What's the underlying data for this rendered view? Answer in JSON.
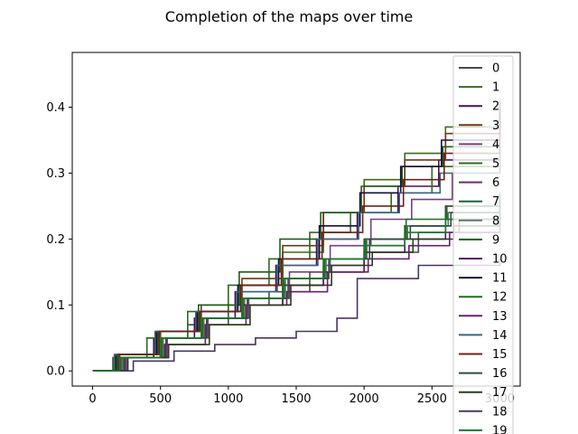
{
  "chart_data": {
    "type": "line",
    "title": "Completion of the maps over time",
    "xlabel": "",
    "ylabel": "",
    "xlim": [
      -150,
      3150
    ],
    "ylim": [
      -0.023,
      0.483
    ],
    "x_ticks": [
      0,
      500,
      1000,
      1500,
      2000,
      2500,
      3000
    ],
    "x_tick_labels": [
      "0",
      "500",
      "1000",
      "1500",
      "2000",
      "2500",
      "3000"
    ],
    "y_ticks": [
      0.0,
      0.1,
      0.2,
      0.3,
      0.4
    ],
    "y_tick_labels": [
      "0.0",
      "0.1",
      "0.2",
      "0.3",
      "0.4"
    ],
    "grid": false,
    "legend_position": "top-right",
    "series": [
      {
        "name": "0",
        "color": "#4a4a4a",
        "points": [
          [
            0,
            0
          ],
          [
            150,
            0.02
          ],
          [
            400,
            0.05
          ],
          [
            700,
            0.07
          ],
          [
            1000,
            0.1
          ],
          [
            1300,
            0.12
          ],
          [
            1600,
            0.15
          ],
          [
            2000,
            0.18
          ],
          [
            2400,
            0.21
          ],
          [
            2700,
            0.23
          ],
          [
            3000,
            0.25
          ]
        ]
      },
      {
        "name": "1",
        "color": "#3d6b1a",
        "points": [
          [
            0,
            0
          ],
          [
            200,
            0.02
          ],
          [
            500,
            0.05
          ],
          [
            800,
            0.09
          ],
          [
            1100,
            0.13
          ],
          [
            1400,
            0.18
          ],
          [
            1700,
            0.24
          ],
          [
            2000,
            0.29
          ],
          [
            2300,
            0.33
          ],
          [
            2600,
            0.37
          ],
          [
            3000,
            0.41
          ]
        ]
      },
      {
        "name": "2",
        "color": "#4b0f55",
        "points": [
          [
            0,
            0
          ],
          [
            180,
            0.02
          ],
          [
            450,
            0.05
          ],
          [
            750,
            0.08
          ],
          [
            1050,
            0.12
          ],
          [
            1350,
            0.16
          ],
          [
            1650,
            0.2
          ],
          [
            1950,
            0.24
          ],
          [
            2250,
            0.28
          ],
          [
            2550,
            0.32
          ],
          [
            3000,
            0.39
          ]
        ]
      },
      {
        "name": "3",
        "color": "#6b3a17",
        "points": [
          [
            0,
            0
          ],
          [
            200,
            0.025
          ],
          [
            500,
            0.06
          ],
          [
            800,
            0.1
          ],
          [
            1100,
            0.14
          ],
          [
            1400,
            0.19
          ],
          [
            1700,
            0.24
          ],
          [
            2000,
            0.28
          ],
          [
            2300,
            0.32
          ],
          [
            2600,
            0.36
          ],
          [
            3000,
            0.39
          ]
        ]
      },
      {
        "name": "4",
        "color": "#7a3e80",
        "points": [
          [
            0,
            0
          ],
          [
            250,
            0.02
          ],
          [
            550,
            0.05
          ],
          [
            850,
            0.08
          ],
          [
            1150,
            0.11
          ],
          [
            1450,
            0.15
          ],
          [
            1750,
            0.19
          ],
          [
            2050,
            0.23
          ],
          [
            2350,
            0.26
          ],
          [
            2650,
            0.3
          ],
          [
            3000,
            0.34
          ]
        ]
      },
      {
        "name": "5",
        "color": "#2e6b1c",
        "points": [
          [
            0,
            0
          ],
          [
            150,
            0.02
          ],
          [
            400,
            0.05
          ],
          [
            700,
            0.09
          ],
          [
            1000,
            0.13
          ],
          [
            1300,
            0.17
          ],
          [
            1600,
            0.21
          ],
          [
            1900,
            0.24
          ],
          [
            2200,
            0.27
          ],
          [
            2500,
            0.31
          ],
          [
            3000,
            0.38
          ]
        ]
      },
      {
        "name": "6",
        "color": "#6e2a73",
        "points": [
          [
            0,
            0
          ],
          [
            200,
            0.02
          ],
          [
            500,
            0.05
          ],
          [
            800,
            0.08
          ],
          [
            1100,
            0.1
          ],
          [
            1400,
            0.13
          ],
          [
            1700,
            0.16
          ],
          [
            2000,
            0.19
          ],
          [
            2300,
            0.22
          ],
          [
            2600,
            0.25
          ],
          [
            3000,
            0.27
          ]
        ]
      },
      {
        "name": "7",
        "color": "#1e5e3a",
        "points": [
          [
            0,
            0
          ],
          [
            200,
            0.02
          ],
          [
            500,
            0.05
          ],
          [
            800,
            0.08
          ],
          [
            1100,
            0.11
          ],
          [
            1400,
            0.14
          ],
          [
            1700,
            0.17
          ],
          [
            2000,
            0.2
          ],
          [
            2300,
            0.22
          ],
          [
            2600,
            0.24
          ],
          [
            3000,
            0.26
          ]
        ]
      },
      {
        "name": "8",
        "color": "#5f7a5f",
        "points": [
          [
            0,
            0
          ],
          [
            220,
            0.02
          ],
          [
            520,
            0.05
          ],
          [
            820,
            0.08
          ],
          [
            1120,
            0.11
          ],
          [
            1420,
            0.14
          ],
          [
            1720,
            0.17
          ],
          [
            2020,
            0.2
          ],
          [
            2320,
            0.22
          ],
          [
            2620,
            0.24
          ],
          [
            3000,
            0.26
          ]
        ]
      },
      {
        "name": "9",
        "color": "#1b5e1b",
        "points": [
          [
            0,
            0
          ],
          [
            180,
            0.025
          ],
          [
            480,
            0.06
          ],
          [
            780,
            0.1
          ],
          [
            1080,
            0.15
          ],
          [
            1380,
            0.2
          ],
          [
            1680,
            0.24
          ],
          [
            1980,
            0.28
          ],
          [
            2280,
            0.31
          ],
          [
            2580,
            0.34
          ],
          [
            3000,
            0.37
          ]
        ]
      },
      {
        "name": "10",
        "color": "#5c1166",
        "points": [
          [
            0,
            0
          ],
          [
            200,
            0.02
          ],
          [
            500,
            0.05
          ],
          [
            800,
            0.08
          ],
          [
            1100,
            0.1
          ],
          [
            1400,
            0.13
          ],
          [
            1700,
            0.15
          ],
          [
            2000,
            0.18
          ],
          [
            2300,
            0.2
          ],
          [
            2600,
            0.23
          ],
          [
            3000,
            0.25
          ]
        ]
      },
      {
        "name": "11",
        "color": "#15103d",
        "points": [
          [
            0,
            0
          ],
          [
            170,
            0.025
          ],
          [
            470,
            0.06
          ],
          [
            770,
            0.09
          ],
          [
            1070,
            0.13
          ],
          [
            1370,
            0.17
          ],
          [
            1670,
            0.22
          ],
          [
            1970,
            0.27
          ],
          [
            2270,
            0.31
          ],
          [
            2570,
            0.35
          ],
          [
            3000,
            0.4
          ]
        ]
      },
      {
        "name": "12",
        "color": "#1f6e1f",
        "points": [
          [
            0,
            0
          ],
          [
            210,
            0.02
          ],
          [
            510,
            0.05
          ],
          [
            810,
            0.08
          ],
          [
            1110,
            0.11
          ],
          [
            1410,
            0.14
          ],
          [
            1710,
            0.17
          ],
          [
            2010,
            0.2
          ],
          [
            2310,
            0.23
          ],
          [
            2610,
            0.25
          ],
          [
            3000,
            0.27
          ]
        ]
      },
      {
        "name": "13",
        "color": "#6a1f78",
        "points": [
          [
            0,
            0
          ],
          [
            230,
            0.02
          ],
          [
            530,
            0.04
          ],
          [
            830,
            0.07
          ],
          [
            1130,
            0.1
          ],
          [
            1430,
            0.12
          ],
          [
            1730,
            0.15
          ],
          [
            2030,
            0.17
          ],
          [
            2330,
            0.19
          ],
          [
            2630,
            0.21
          ],
          [
            3000,
            0.23
          ]
        ]
      },
      {
        "name": "14",
        "color": "#3c6680",
        "points": [
          [
            0,
            0
          ],
          [
            160,
            0.025
          ],
          [
            460,
            0.06
          ],
          [
            760,
            0.09
          ],
          [
            1060,
            0.12
          ],
          [
            1360,
            0.16
          ],
          [
            1660,
            0.2
          ],
          [
            1960,
            0.24
          ],
          [
            2260,
            0.27
          ],
          [
            2560,
            0.3
          ],
          [
            3000,
            0.33
          ]
        ]
      },
      {
        "name": "15",
        "color": "#6e2314",
        "points": [
          [
            0,
            0
          ],
          [
            190,
            0.025
          ],
          [
            490,
            0.06
          ],
          [
            790,
            0.09
          ],
          [
            1090,
            0.13
          ],
          [
            1390,
            0.17
          ],
          [
            1690,
            0.21
          ],
          [
            1990,
            0.25
          ],
          [
            2290,
            0.29
          ],
          [
            2590,
            0.33
          ],
          [
            3000,
            0.36
          ]
        ]
      },
      {
        "name": "16",
        "color": "#2f4a40",
        "points": [
          [
            0,
            0
          ],
          [
            240,
            0.02
          ],
          [
            540,
            0.05
          ],
          [
            840,
            0.08
          ],
          [
            1140,
            0.11
          ],
          [
            1440,
            0.14
          ],
          [
            1740,
            0.17
          ],
          [
            2040,
            0.2
          ],
          [
            2340,
            0.22
          ],
          [
            2640,
            0.24
          ],
          [
            3000,
            0.26
          ]
        ]
      },
      {
        "name": "17",
        "color": "#2a3d1a",
        "points": [
          [
            0,
            0
          ],
          [
            260,
            0.02
          ],
          [
            560,
            0.04
          ],
          [
            860,
            0.07
          ],
          [
            1160,
            0.1
          ],
          [
            1460,
            0.13
          ],
          [
            1760,
            0.16
          ],
          [
            2060,
            0.18
          ],
          [
            2360,
            0.2
          ],
          [
            2660,
            0.22
          ],
          [
            3000,
            0.24
          ]
        ]
      },
      {
        "name": "18",
        "color": "#4a3366",
        "points": [
          [
            0,
            0
          ],
          [
            300,
            0.015
          ],
          [
            600,
            0.03
          ],
          [
            900,
            0.04
          ],
          [
            1200,
            0.05
          ],
          [
            1500,
            0.06
          ],
          [
            1800,
            0.08
          ],
          [
            1950,
            0.08
          ],
          [
            1950,
            0.14
          ],
          [
            2400,
            0.16
          ],
          [
            3000,
            0.17
          ]
        ]
      },
      {
        "name": "19",
        "color": "#1a7a2a",
        "points": [
          [
            0,
            0
          ],
          [
            200,
            0.02
          ],
          [
            500,
            0.05
          ],
          [
            800,
            0.08
          ],
          [
            1100,
            0.11
          ],
          [
            1400,
            0.14
          ],
          [
            1700,
            0.17
          ],
          [
            2000,
            0.19
          ],
          [
            2300,
            0.21
          ],
          [
            2600,
            0.23
          ],
          [
            3000,
            0.24
          ]
        ]
      }
    ]
  }
}
